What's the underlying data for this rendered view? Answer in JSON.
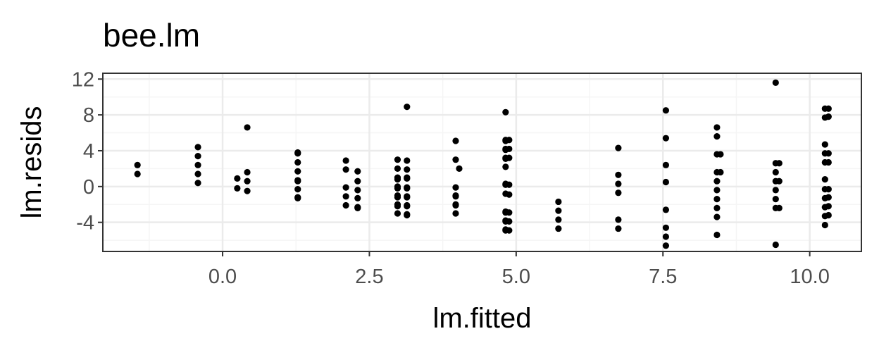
{
  "chart_data": {
    "type": "scatter",
    "title": "bee.lm",
    "xlabel": "lm.fitted",
    "ylabel": "lm.resids",
    "xlim": [
      -2.04,
      10.88
    ],
    "ylim": [
      -7.25,
      12.65
    ],
    "x_ticks": [
      0.0,
      2.5,
      5.0,
      7.5,
      10.0
    ],
    "x_tick_labels": [
      "0.0",
      "2.5",
      "5.0",
      "7.5",
      "10.0"
    ],
    "y_ticks": [
      -4,
      0,
      4,
      8,
      12
    ],
    "y_tick_labels": [
      "-4",
      "0",
      "4",
      "8",
      "12"
    ],
    "grid": true,
    "theme": "bw",
    "point_color": "#000000",
    "panel_border_color": "#333333",
    "grid_major_color": "#ebebeb",
    "grid_minor_color": "#f5f5f5",
    "groups": [
      {
        "x": -1.45,
        "y": [
          2.4,
          1.4
        ]
      },
      {
        "x": -0.42,
        "y": [
          4.4,
          3.4,
          2.4,
          1.4,
          0.4
        ]
      },
      {
        "x": 0.25,
        "y": [
          0.9,
          -0.2
        ]
      },
      {
        "x": 0.42,
        "y": [
          6.6,
          1.6,
          0.6,
          -0.5
        ]
      },
      {
        "x": 1.28,
        "y": [
          3.8,
          3.7,
          2.7,
          1.7,
          0.7,
          0.6,
          -0.3,
          -1.2,
          -1.3
        ]
      },
      {
        "x": 2.1,
        "y": [
          2.9,
          1.9,
          -0.1,
          -1.1,
          -2.1
        ]
      },
      {
        "x": 2.3,
        "y": [
          1.7,
          0.6,
          -0.4,
          -1.3,
          -2.3,
          -2.4
        ]
      },
      {
        "x": 2.98,
        "y": [
          3.0,
          2.0,
          1.0,
          0.0,
          -1.0,
          -2.0,
          -3.0,
          0.8,
          -0.2,
          -1.2,
          -2.2
        ]
      },
      {
        "x": 3.14,
        "y": [
          8.9,
          2.9,
          1.9,
          0.9,
          -0.1,
          -1.1,
          -2.1,
          -3.1,
          -3.2,
          1.0,
          -0.2,
          -1.2,
          -2.2
        ]
      },
      {
        "x": 3.97,
        "y": [
          5.1,
          3.0,
          -0.1,
          -1.0,
          -1.1,
          -2.0,
          -2.1,
          -3.0
        ]
      },
      {
        "x": 4.03,
        "y": [
          2.0
        ]
      },
      {
        "x": 4.82,
        "y": [
          8.3,
          5.2,
          5.1,
          4.2,
          4.1,
          3.2,
          3.1,
          2.2,
          0.3,
          0.2,
          -0.8,
          -2.8,
          -2.9,
          -3.8,
          -3.9,
          -4.8,
          -4.9
        ]
      },
      {
        "x": 4.88,
        "y": [
          5.2,
          4.2,
          3.2,
          0.2,
          -0.9,
          -2.9,
          -3.9,
          -4.9
        ]
      },
      {
        "x": 5.72,
        "y": [
          -1.7,
          -2.7,
          -3.7,
          -4.7
        ]
      },
      {
        "x": 6.74,
        "y": [
          4.3,
          1.3,
          0.3,
          -0.7,
          -3.7,
          -4.7
        ]
      },
      {
        "x": 7.55,
        "y": [
          8.5,
          5.4,
          2.4,
          0.5,
          -2.6,
          -4.6,
          -5.6,
          -6.6
        ]
      },
      {
        "x": 8.42,
        "y": [
          6.6,
          5.6,
          3.6,
          1.6,
          0.6,
          -0.4,
          -1.4,
          -2.4,
          -3.4,
          -5.4
        ]
      },
      {
        "x": 8.48,
        "y": [
          3.6,
          1.6
        ]
      },
      {
        "x": 9.42,
        "y": [
          11.6,
          2.6,
          1.6,
          0.6,
          -0.4,
          -1.4,
          -2.4,
          -6.5
        ]
      },
      {
        "x": 9.48,
        "y": [
          2.6,
          0.6,
          -2.4
        ]
      },
      {
        "x": 10.26,
        "y": [
          8.7,
          7.7,
          4.7,
          3.7,
          2.7,
          0.8,
          -0.3,
          -1.3,
          -2.3,
          -3.3,
          -4.3
        ]
      },
      {
        "x": 10.32,
        "y": [
          8.7,
          7.8,
          3.7,
          2.7,
          -0.3,
          -1.2,
          -2.2,
          -3.2
        ]
      }
    ]
  }
}
